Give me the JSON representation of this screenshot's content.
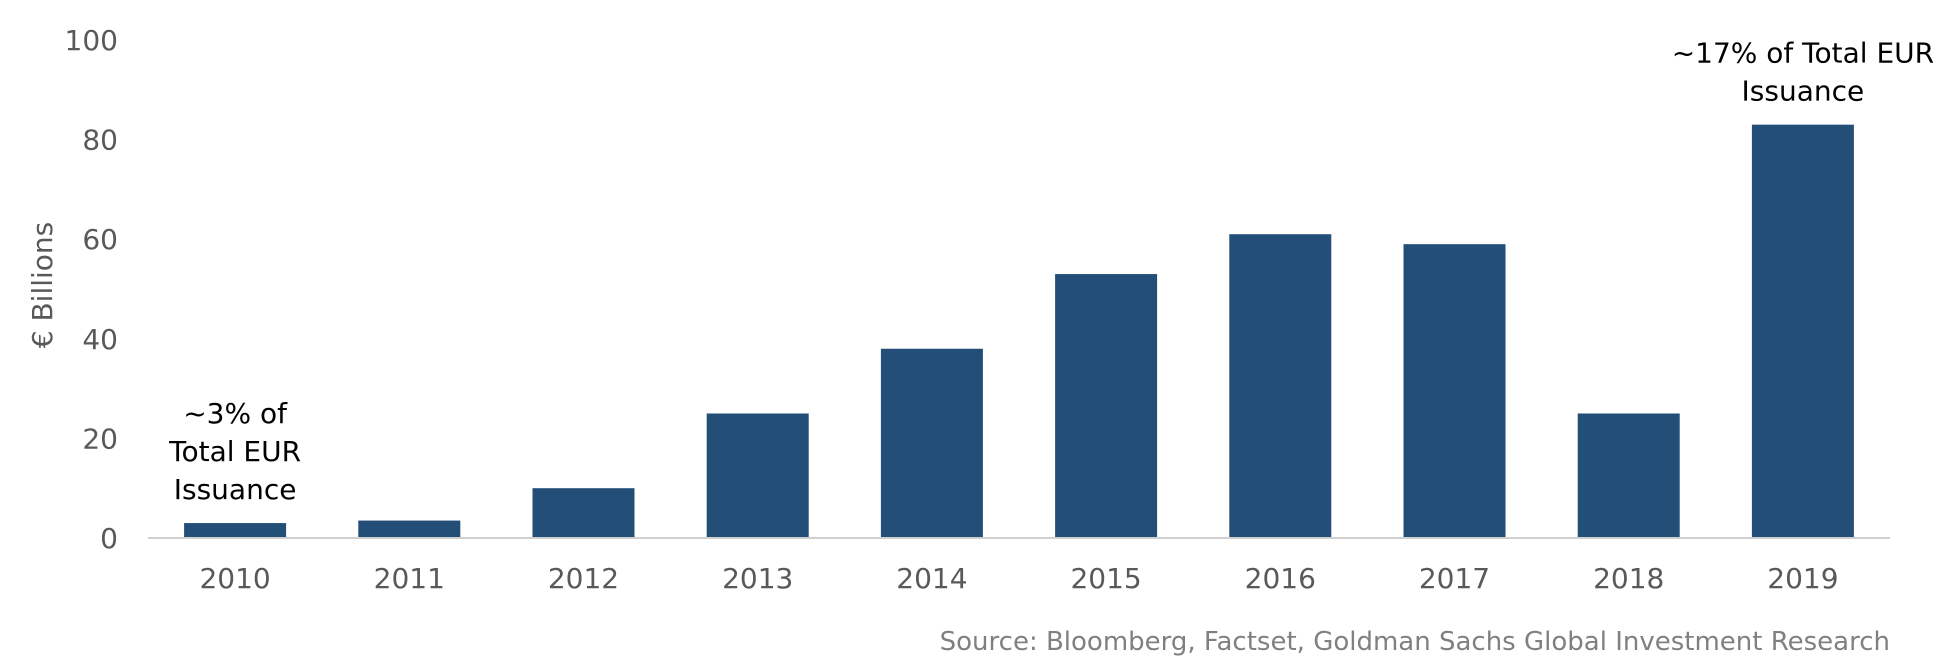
{
  "chart_data": {
    "type": "bar",
    "categories": [
      "2010",
      "2011",
      "2012",
      "2013",
      "2014",
      "2015",
      "2016",
      "2017",
      "2018",
      "2019"
    ],
    "values": [
      3,
      3.5,
      10,
      25,
      38,
      53,
      61,
      59,
      25,
      83
    ],
    "ylabel": "€ Billions",
    "ylim": [
      0,
      100
    ],
    "yticks": [
      "0",
      "20",
      "40",
      "60",
      "80",
      "100"
    ],
    "grid": false,
    "bar_color": "#234E78",
    "annotations": [
      {
        "category": "2010",
        "lines": [
          "~3% of",
          "Total EUR",
          "Issuance"
        ]
      },
      {
        "category": "2019",
        "lines": [
          "~17% of Total EUR",
          "Issuance"
        ]
      }
    ]
  },
  "source": "Source: Bloomberg, Factset, Goldman Sachs Global Investment Research"
}
